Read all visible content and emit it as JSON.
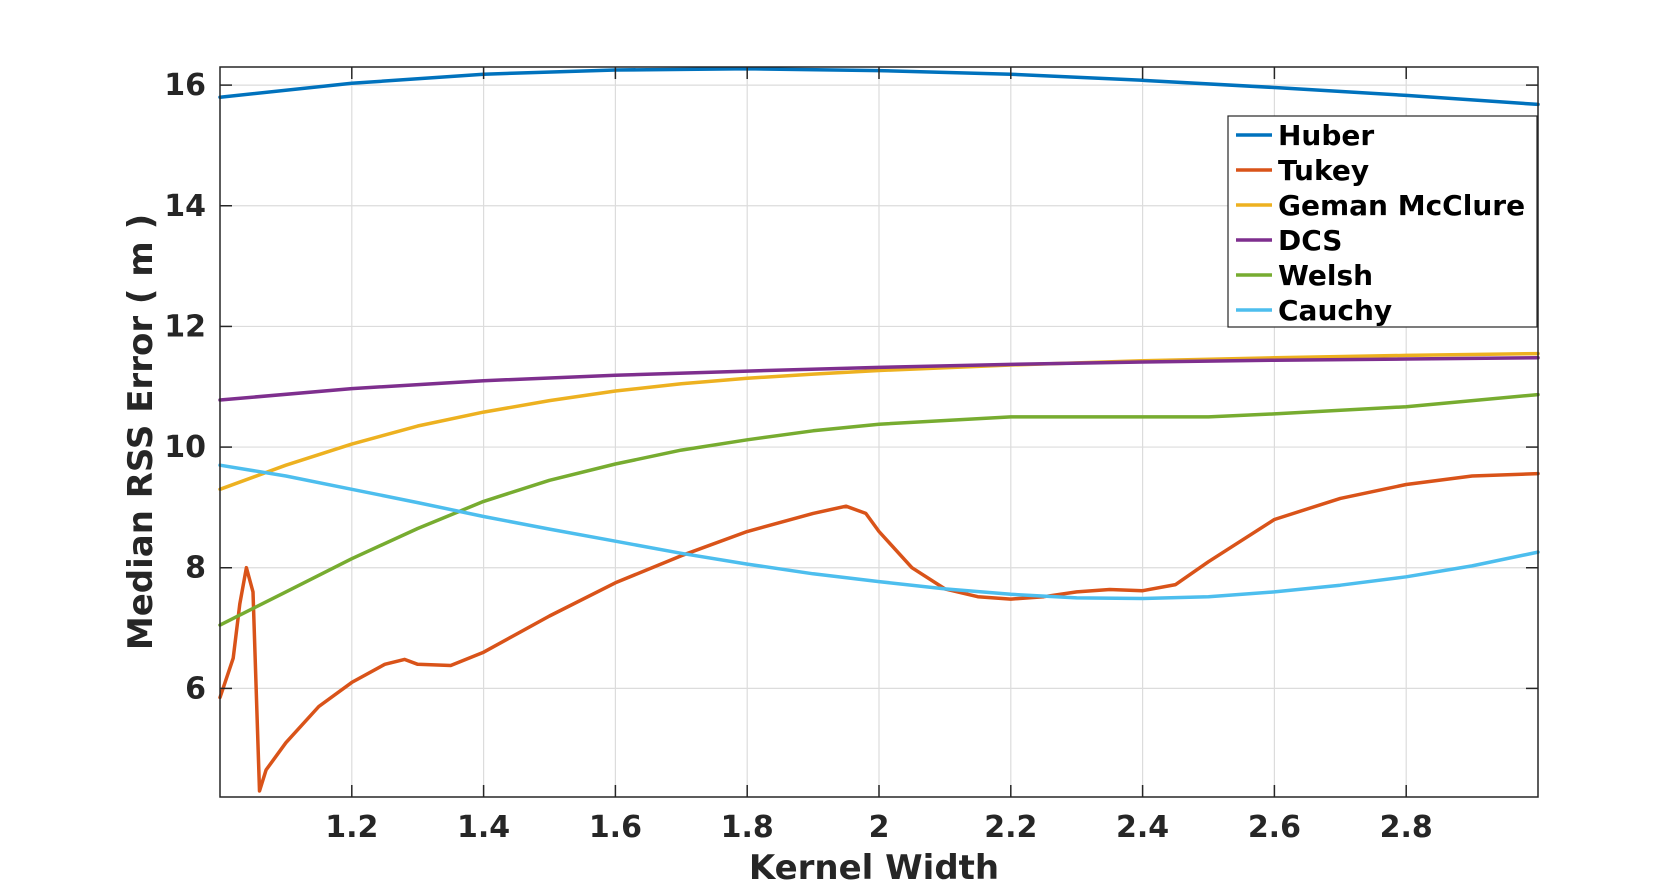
{
  "chart_data": {
    "type": "line",
    "title": "",
    "xlabel": "Kernel Width",
    "ylabel": "Median RSS Error ( m )",
    "xlim": [
      1.0,
      3.0
    ],
    "ylim": [
      4.2,
      16.3
    ],
    "xticks": [
      1.2,
      1.4,
      1.6,
      1.8,
      2,
      2.2,
      2.4,
      2.6,
      2.8
    ],
    "xtick_labels": [
      "1.2",
      "1.4",
      "1.6",
      "1.8",
      "2",
      "2.2",
      "2.4",
      "2.6",
      "2.8"
    ],
    "yticks": [
      6,
      8,
      10,
      12,
      14,
      16
    ],
    "ytick_labels": [
      "6",
      "8",
      "10",
      "12",
      "14",
      "16"
    ],
    "grid": true,
    "legend_position": "top-right",
    "series": [
      {
        "name": "Huber",
        "color": "#0072BD",
        "x": [
          1.0,
          1.2,
          1.4,
          1.6,
          1.8,
          2.0,
          2.2,
          2.4,
          2.6,
          2.8,
          3.0
        ],
        "y": [
          15.8,
          16.03,
          16.18,
          16.25,
          16.27,
          16.24,
          16.18,
          16.08,
          15.96,
          15.83,
          15.68
        ]
      },
      {
        "name": "Tukey",
        "color": "#D95319",
        "x": [
          1.0,
          1.02,
          1.03,
          1.04,
          1.05,
          1.06,
          1.07,
          1.1,
          1.15,
          1.2,
          1.25,
          1.28,
          1.3,
          1.35,
          1.4,
          1.5,
          1.6,
          1.7,
          1.8,
          1.9,
          1.95,
          1.98,
          2.0,
          2.05,
          2.1,
          2.15,
          2.2,
          2.25,
          2.3,
          2.35,
          2.4,
          2.45,
          2.5,
          2.6,
          2.7,
          2.8,
          2.9,
          3.0
        ],
        "y": [
          5.85,
          6.5,
          7.4,
          8.0,
          7.6,
          4.3,
          4.65,
          5.1,
          5.7,
          6.1,
          6.4,
          6.48,
          6.4,
          6.38,
          6.6,
          7.2,
          7.75,
          8.2,
          8.6,
          8.9,
          9.02,
          8.9,
          8.6,
          8.0,
          7.65,
          7.52,
          7.48,
          7.52,
          7.6,
          7.64,
          7.62,
          7.72,
          8.1,
          8.8,
          9.15,
          9.38,
          9.52,
          9.56
        ]
      },
      {
        "name": "Geman McClure",
        "color": "#EDB120",
        "x": [
          1.0,
          1.1,
          1.2,
          1.3,
          1.4,
          1.5,
          1.6,
          1.7,
          1.8,
          1.9,
          2.0,
          2.2,
          2.4,
          2.6,
          2.8,
          3.0
        ],
        "y": [
          9.3,
          9.7,
          10.05,
          10.35,
          10.58,
          10.77,
          10.93,
          11.05,
          11.14,
          11.21,
          11.27,
          11.36,
          11.43,
          11.48,
          11.52,
          11.55
        ]
      },
      {
        "name": "DCS",
        "color": "#7E2F8E",
        "x": [
          1.0,
          1.2,
          1.4,
          1.6,
          1.8,
          2.0,
          2.2,
          2.4,
          2.6,
          2.8,
          3.0
        ],
        "y": [
          10.78,
          10.97,
          11.1,
          11.19,
          11.26,
          11.32,
          11.37,
          11.41,
          11.44,
          11.46,
          11.48
        ]
      },
      {
        "name": "Welsh",
        "color": "#77AC30",
        "x": [
          1.0,
          1.1,
          1.2,
          1.3,
          1.4,
          1.5,
          1.6,
          1.7,
          1.8,
          1.9,
          2.0,
          2.2,
          2.4,
          2.5,
          2.6,
          2.8,
          3.0
        ],
        "y": [
          7.05,
          7.6,
          8.15,
          8.65,
          9.1,
          9.45,
          9.72,
          9.95,
          10.12,
          10.27,
          10.38,
          10.5,
          10.5,
          10.5,
          10.55,
          10.67,
          10.87
        ]
      },
      {
        "name": "Cauchy",
        "color": "#4DBEEE",
        "x": [
          1.0,
          1.1,
          1.2,
          1.3,
          1.4,
          1.5,
          1.6,
          1.7,
          1.8,
          1.9,
          2.0,
          2.1,
          2.2,
          2.3,
          2.4,
          2.5,
          2.6,
          2.7,
          2.8,
          2.9,
          3.0
        ],
        "y": [
          9.7,
          9.52,
          9.3,
          9.08,
          8.85,
          8.64,
          8.44,
          8.24,
          8.06,
          7.9,
          7.77,
          7.65,
          7.56,
          7.5,
          7.49,
          7.52,
          7.6,
          7.71,
          7.85,
          8.03,
          8.26
        ]
      }
    ]
  }
}
